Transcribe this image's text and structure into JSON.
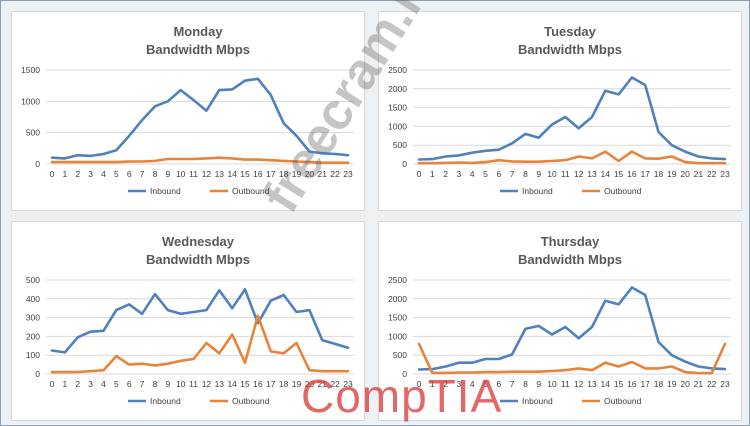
{
  "watermark_text": "freecram.net",
  "logo_text": "CompTIA",
  "colors": {
    "inbound": "#4f81bd",
    "outbound": "#e8833a"
  },
  "chart_data": [
    {
      "type": "line",
      "title": "Monday",
      "subtitle": "Bandwidth Mbps",
      "x": [
        0,
        1,
        2,
        3,
        4,
        5,
        6,
        7,
        8,
        9,
        10,
        11,
        12,
        13,
        14,
        15,
        16,
        17,
        18,
        19,
        20,
        21,
        22,
        23
      ],
      "ylim": [
        0,
        1500
      ],
      "yticks": [
        0,
        500,
        1000,
        1500
      ],
      "legend": "bottom",
      "grid": true,
      "series": [
        {
          "name": "Inbound",
          "values": [
            100,
            90,
            140,
            130,
            160,
            220,
            450,
            700,
            920,
            1000,
            1180,
            1020,
            850,
            1180,
            1190,
            1330,
            1360,
            1100,
            650,
            450,
            200,
            170,
            160,
            140
          ]
        },
        {
          "name": "Outbound",
          "values": [
            30,
            30,
            30,
            30,
            30,
            30,
            40,
            40,
            50,
            80,
            80,
            80,
            90,
            100,
            90,
            70,
            70,
            60,
            50,
            40,
            30,
            20,
            20,
            20
          ]
        }
      ]
    },
    {
      "type": "line",
      "title": "Tuesday",
      "subtitle": "Bandwidth Mbps",
      "x": [
        0,
        1,
        2,
        3,
        4,
        5,
        6,
        7,
        8,
        9,
        10,
        11,
        12,
        13,
        14,
        15,
        16,
        17,
        18,
        19,
        20,
        21,
        22,
        23
      ],
      "ylim": [
        0,
        2500
      ],
      "yticks": [
        0,
        500,
        1000,
        1500,
        2000,
        2500
      ],
      "legend": "bottom",
      "grid": true,
      "series": [
        {
          "name": "Inbound",
          "values": [
            120,
            130,
            200,
            230,
            300,
            350,
            380,
            550,
            800,
            700,
            1050,
            1250,
            950,
            1250,
            1950,
            1850,
            2300,
            2100,
            850,
            500,
            330,
            200,
            150,
            130
          ]
        },
        {
          "name": "Outbound",
          "values": [
            20,
            20,
            30,
            40,
            30,
            50,
            100,
            70,
            60,
            60,
            80,
            100,
            200,
            150,
            330,
            80,
            330,
            150,
            140,
            200,
            50,
            20,
            20,
            20
          ]
        }
      ]
    },
    {
      "type": "line",
      "title": "Wednesday",
      "subtitle": "Bandwidth Mbps",
      "x": [
        0,
        1,
        2,
        3,
        4,
        5,
        6,
        7,
        8,
        9,
        10,
        11,
        12,
        13,
        14,
        15,
        16,
        17,
        18,
        19,
        20,
        21,
        22,
        23
      ],
      "ylim": [
        0,
        500
      ],
      "yticks": [
        0,
        100,
        200,
        300,
        400,
        500
      ],
      "legend": "bottom",
      "grid": true,
      "series": [
        {
          "name": "Inbound",
          "values": [
            125,
            115,
            195,
            225,
            230,
            340,
            370,
            320,
            425,
            340,
            320,
            330,
            340,
            445,
            350,
            450,
            270,
            390,
            420,
            330,
            340,
            180,
            160,
            140
          ]
        },
        {
          "name": "Outbound",
          "values": [
            10,
            10,
            10,
            15,
            20,
            95,
            50,
            55,
            45,
            55,
            70,
            80,
            165,
            110,
            210,
            60,
            310,
            120,
            110,
            165,
            20,
            15,
            15,
            15
          ]
        }
      ]
    },
    {
      "type": "line",
      "title": "Thursday",
      "subtitle": "Bandwidth Mbps",
      "x": [
        0,
        1,
        2,
        3,
        4,
        5,
        6,
        7,
        8,
        9,
        10,
        11,
        12,
        13,
        14,
        15,
        16,
        17,
        18,
        19,
        20,
        21,
        22,
        23
      ],
      "ylim": [
        0,
        2500
      ],
      "yticks": [
        0,
        500,
        1000,
        1500,
        2000,
        2500
      ],
      "legend": "bottom",
      "grid": true,
      "series": [
        {
          "name": "Inbound",
          "values": [
            120,
            130,
            200,
            300,
            300,
            400,
            400,
            520,
            1200,
            1280,
            1050,
            1250,
            950,
            1250,
            1950,
            1850,
            2300,
            2100,
            850,
            500,
            330,
            200,
            150,
            130
          ]
        },
        {
          "name": "Outbound",
          "values": [
            800,
            30,
            30,
            40,
            40,
            50,
            50,
            60,
            60,
            60,
            80,
            100,
            150,
            100,
            300,
            200,
            320,
            150,
            150,
            200,
            50,
            20,
            20,
            800
          ]
        }
      ]
    }
  ]
}
